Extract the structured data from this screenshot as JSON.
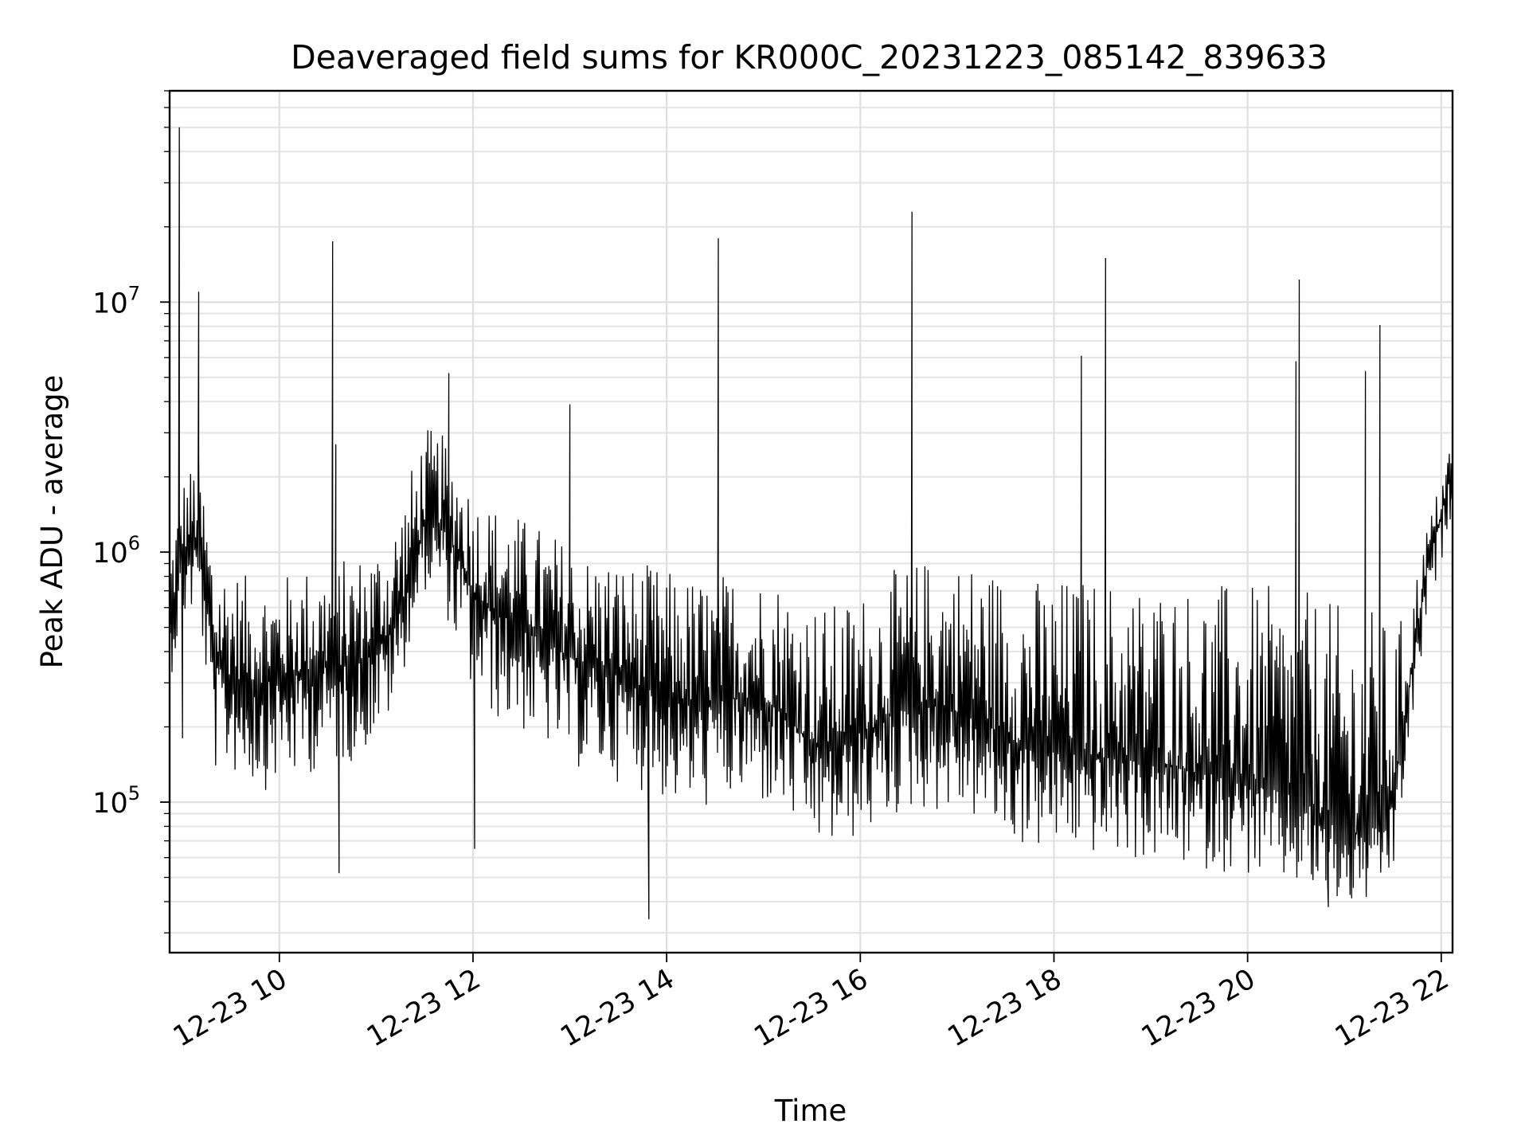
{
  "chart_data": {
    "type": "line",
    "title": "Deaveraged field sums for KR000C_20231223_085142_839633",
    "xlabel": "Time",
    "ylabel": "Peak ADU - average",
    "x_scale": "time",
    "y_scale": "log",
    "xlim": [
      "2023-12-23 08:52",
      "2023-12-23 22:07"
    ],
    "ylim": [
      25000,
      70000000
    ],
    "grid": true,
    "legend": "none",
    "line_color": "#000000",
    "x_ticks": [
      {
        "value": "2023-12-23 10:00",
        "label": "12-23 10"
      },
      {
        "value": "2023-12-23 12:00",
        "label": "12-23 12"
      },
      {
        "value": "2023-12-23 14:00",
        "label": "12-23 14"
      },
      {
        "value": "2023-12-23 16:00",
        "label": "12-23 16"
      },
      {
        "value": "2023-12-23 18:00",
        "label": "12-23 18"
      },
      {
        "value": "2023-12-23 20:00",
        "label": "12-23 20"
      },
      {
        "value": "2023-12-23 22:00",
        "label": "12-23 22"
      }
    ],
    "y_ticks": [
      {
        "value": 100000,
        "base": "10",
        "exp": "5"
      },
      {
        "value": 1000000,
        "base": "10",
        "exp": "6"
      },
      {
        "value": 10000000,
        "base": "10",
        "exp": "7"
      }
    ],
    "series": [
      {
        "x": [
          "2023-12-23 08:52",
          "2023-12-23 09:00",
          "2023-12-23 09:10",
          "2023-12-23 09:20",
          "2023-12-23 09:30",
          "2023-12-23 09:40",
          "2023-12-23 09:50",
          "2023-12-23 10:00",
          "2023-12-23 10:10",
          "2023-12-23 10:20",
          "2023-12-23 10:30",
          "2023-12-23 10:40",
          "2023-12-23 10:50",
          "2023-12-23 11:00",
          "2023-12-23 11:10",
          "2023-12-23 11:20",
          "2023-12-23 11:30",
          "2023-12-23 11:40",
          "2023-12-23 11:50",
          "2023-12-23 12:00",
          "2023-12-23 12:10",
          "2023-12-23 12:20",
          "2023-12-23 12:30",
          "2023-12-23 12:40",
          "2023-12-23 12:50",
          "2023-12-23 13:00",
          "2023-12-23 13:10",
          "2023-12-23 13:20",
          "2023-12-23 13:30",
          "2023-12-23 13:40",
          "2023-12-23 13:50",
          "2023-12-23 14:00",
          "2023-12-23 14:10",
          "2023-12-23 14:20",
          "2023-12-23 14:30",
          "2023-12-23 14:40",
          "2023-12-23 14:50",
          "2023-12-23 15:00",
          "2023-12-23 15:10",
          "2023-12-23 15:20",
          "2023-12-23 15:30",
          "2023-12-23 15:40",
          "2023-12-23 15:50",
          "2023-12-23 16:00",
          "2023-12-23 16:10",
          "2023-12-23 16:20",
          "2023-12-23 16:30",
          "2023-12-23 16:40",
          "2023-12-23 16:50",
          "2023-12-23 17:00",
          "2023-12-23 17:10",
          "2023-12-23 17:20",
          "2023-12-23 17:30",
          "2023-12-23 17:40",
          "2023-12-23 17:50",
          "2023-12-23 18:00",
          "2023-12-23 18:10",
          "2023-12-23 18:20",
          "2023-12-23 18:30",
          "2023-12-23 18:40",
          "2023-12-23 18:50",
          "2023-12-23 19:00",
          "2023-12-23 19:10",
          "2023-12-23 19:20",
          "2023-12-23 19:30",
          "2023-12-23 19:40",
          "2023-12-23 19:50",
          "2023-12-23 20:00",
          "2023-12-23 20:10",
          "2023-12-23 20:20",
          "2023-12-23 20:30",
          "2023-12-23 20:40",
          "2023-12-23 20:50",
          "2023-12-23 21:00",
          "2023-12-23 21:10",
          "2023-12-23 21:20",
          "2023-12-23 21:30",
          "2023-12-23 21:40",
          "2023-12-23 21:50",
          "2023-12-23 22:00",
          "2023-12-23 22:07"
        ],
        "median": [
          500000,
          1000000,
          1100000,
          350000,
          320000,
          300000,
          300000,
          310000,
          320000,
          330000,
          350000,
          350000,
          370000,
          420000,
          480000,
          750000,
          1300000,
          1300000,
          1000000,
          700000,
          600000,
          550000,
          520000,
          450000,
          420000,
          380000,
          350000,
          340000,
          320000,
          300000,
          280000,
          260000,
          250000,
          240000,
          250000,
          260000,
          260000,
          250000,
          240000,
          200000,
          170000,
          160000,
          170000,
          190000,
          200000,
          230000,
          240000,
          250000,
          240000,
          230000,
          220000,
          200000,
          180000,
          170000,
          160000,
          160000,
          160000,
          155000,
          150000,
          150000,
          145000,
          140000,
          140000,
          135000,
          130000,
          130000,
          125000,
          120000,
          115000,
          110000,
          105000,
          95000,
          85000,
          75000,
          75000,
          80000,
          100000,
          280000,
          800000,
          1400000,
          2200000
        ],
        "low": [
          300000,
          500000,
          600000,
          130000,
          130000,
          120000,
          110000,
          120000,
          120000,
          130000,
          140000,
          140000,
          150000,
          180000,
          220000,
          400000,
          700000,
          650000,
          400000,
          260000,
          220000,
          200000,
          190000,
          170000,
          160000,
          140000,
          130000,
          125000,
          120000,
          115000,
          105000,
          100000,
          95000,
          92000,
          95000,
          98000,
          98000,
          95000,
          90000,
          78000,
          68000,
          64000,
          66000,
          72000,
          76000,
          85000,
          90000,
          92000,
          90000,
          88000,
          84000,
          76000,
          70000,
          66000,
          64000,
          64000,
          64000,
          62000,
          60000,
          60000,
          58000,
          57000,
          57000,
          55000,
          53000,
          53000,
          52000,
          50000,
          48000,
          46000,
          45000,
          42000,
          40000,
          37000,
          38000,
          40000,
          48000,
          160000,
          450000,
          900000,
          1500000
        ],
        "high": [
          1100000,
          2000000,
          2500000,
          1000000,
          900000,
          800000,
          800000,
          800000,
          850000,
          900000,
          900000,
          950000,
          1000000,
          1100000,
          1300000,
          2000000,
          3200000,
          3000000,
          2500000,
          1800000,
          1600000,
          1500000,
          1400000,
          1300000,
          1200000,
          1100000,
          1000000,
          1000000,
          950000,
          900000,
          900000,
          850000,
          820000,
          800000,
          820000,
          850000,
          850000,
          820000,
          800000,
          700000,
          650000,
          620000,
          650000,
          700000,
          750000,
          850000,
          900000,
          950000,
          950000,
          950000,
          950000,
          900000,
          850000,
          820000,
          800000,
          800000,
          800000,
          800000,
          800000,
          780000,
          780000,
          780000,
          780000,
          760000,
          760000,
          760000,
          760000,
          740000,
          740000,
          720000,
          700000,
          700000,
          650000,
          600000,
          600000,
          600000,
          500000,
          600000,
          1200000,
          2000000,
          3000000
        ]
      }
    ],
    "spikes": [
      {
        "x": "2023-12-23 08:58",
        "y": 50000000
      },
      {
        "x": "2023-12-23 09:10",
        "y": 11000000
      },
      {
        "x": "2023-12-23 10:33",
        "y": 17500000
      },
      {
        "x": "2023-12-23 10:35",
        "y": 2700000
      },
      {
        "x": "2023-12-23 11:45",
        "y": 5200000
      },
      {
        "x": "2023-12-23 13:00",
        "y": 3900000
      },
      {
        "x": "2023-12-23 14:32",
        "y": 18000000
      },
      {
        "x": "2023-12-23 16:32",
        "y": 23000000
      },
      {
        "x": "2023-12-23 18:17",
        "y": 6100000
      },
      {
        "x": "2023-12-23 18:32",
        "y": 15000000
      },
      {
        "x": "2023-12-23 20:30",
        "y": 5800000
      },
      {
        "x": "2023-12-23 20:32",
        "y": 12300000
      },
      {
        "x": "2023-12-23 21:13",
        "y": 5300000
      },
      {
        "x": "2023-12-23 21:22",
        "y": 8100000
      }
    ],
    "dips": [
      {
        "x": "2023-12-23 13:49",
        "y": 34000
      },
      {
        "x": "2023-12-23 09:00",
        "y": 180000
      },
      {
        "x": "2023-12-23 10:37",
        "y": 52000
      },
      {
        "x": "2023-12-23 12:01",
        "y": 65000
      },
      {
        "x": "2023-12-23 20:50",
        "y": 38000
      }
    ]
  }
}
